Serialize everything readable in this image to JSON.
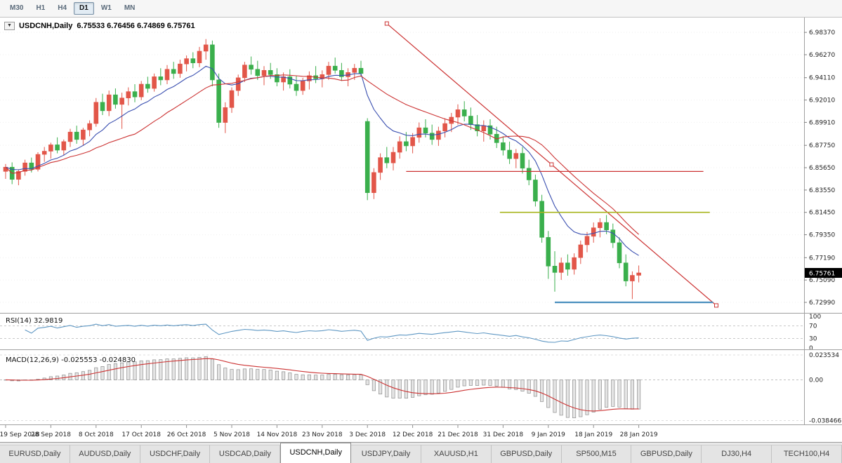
{
  "toolbar": {
    "timeframes": [
      {
        "label": "M30",
        "active": false
      },
      {
        "label": "H1",
        "active": false
      },
      {
        "label": "H4",
        "active": false
      },
      {
        "label": "D1",
        "active": true
      },
      {
        "label": "W1",
        "active": false
      },
      {
        "label": "MN",
        "active": false
      }
    ]
  },
  "chart": {
    "header": {
      "dropdown_icon": "▼",
      "title": "USDCNH,Daily",
      "ohlc": "6.75533 6.76456 6.74869 6.75761"
    },
    "current_price": "6.75761"
  },
  "chart_data": {
    "type": "candlestick",
    "symbol": "USDCNH",
    "timeframe": "Daily",
    "y_range": [
      6.722,
      6.995
    ],
    "price_axis_ticks": [
      "6.98370",
      "6.96270",
      "6.94110",
      "6.92010",
      "6.89910",
      "6.87750",
      "6.85650",
      "6.83550",
      "6.81450",
      "6.79350",
      "6.77190",
      "6.75090",
      "6.72990"
    ],
    "date_ticks": [
      {
        "i": 0,
        "label": "19 Sep 2018"
      },
      {
        "i": 7,
        "label": "28 Sep 2018"
      },
      {
        "i": 14,
        "label": "8 Oct 2018"
      },
      {
        "i": 21,
        "label": "17 Oct 2018"
      },
      {
        "i": 28,
        "label": "26 Oct 2018"
      },
      {
        "i": 35,
        "label": "5 Nov 2018"
      },
      {
        "i": 42,
        "label": "14 Nov 2018"
      },
      {
        "i": 49,
        "label": "23 Nov 2018"
      },
      {
        "i": 56,
        "label": "3 Dec 2018"
      },
      {
        "i": 63,
        "label": "12 Dec 2018"
      },
      {
        "i": 70,
        "label": "21 Dec 2018"
      },
      {
        "i": 77,
        "label": "31 Dec 2018"
      },
      {
        "i": 84,
        "label": "9 Jan 2019"
      },
      {
        "i": 91,
        "label": "18 Jan 2019"
      },
      {
        "i": 98,
        "label": "28 Jan 2019"
      }
    ],
    "candles_ohlc": [
      [
        6.853,
        6.86,
        6.846,
        6.857
      ],
      [
        6.857,
        6.8615,
        6.841,
        6.8455
      ],
      [
        6.8455,
        6.855,
        6.84,
        6.853
      ],
      [
        6.853,
        6.864,
        6.849,
        6.861
      ],
      [
        6.861,
        6.866,
        6.852,
        6.855
      ],
      [
        6.855,
        6.871,
        6.853,
        6.869
      ],
      [
        6.869,
        6.876,
        6.862,
        6.872
      ],
      [
        6.872,
        6.88,
        6.865,
        6.878
      ],
      [
        6.878,
        6.885,
        6.87,
        6.873
      ],
      [
        6.873,
        6.883,
        6.868,
        6.881
      ],
      [
        6.881,
        6.893,
        6.876,
        6.89
      ],
      [
        6.89,
        6.896,
        6.879,
        6.883
      ],
      [
        6.883,
        6.894,
        6.877,
        6.892
      ],
      [
        6.892,
        6.901,
        6.886,
        6.898
      ],
      [
        6.898,
        6.922,
        6.895,
        6.918
      ],
      [
        6.918,
        6.926,
        6.906,
        6.91
      ],
      [
        6.91,
        6.929,
        6.905,
        6.925
      ],
      [
        6.925,
        6.931,
        6.912,
        6.916
      ],
      [
        6.916,
        6.927,
        6.893,
        6.922
      ],
      [
        6.922,
        6.932,
        6.915,
        6.928
      ],
      [
        6.928,
        6.935,
        6.918,
        6.923
      ],
      [
        6.923,
        6.938,
        6.92,
        6.935
      ],
      [
        6.935,
        6.942,
        6.927,
        6.931
      ],
      [
        6.931,
        6.945,
        6.928,
        6.942
      ],
      [
        6.942,
        6.95,
        6.934,
        6.939
      ],
      [
        6.939,
        6.953,
        6.935,
        6.949
      ],
      [
        6.949,
        6.956,
        6.94,
        6.945
      ],
      [
        6.945,
        6.958,
        6.941,
        6.954
      ],
      [
        6.954,
        6.962,
        6.947,
        6.959
      ],
      [
        6.959,
        6.965,
        6.95,
        6.955
      ],
      [
        6.955,
        6.97,
        6.951,
        6.966
      ],
      [
        6.966,
        6.9774,
        6.958,
        6.972
      ],
      [
        6.972,
        6.976,
        6.933,
        6.939
      ],
      [
        6.939,
        6.945,
        6.894,
        6.899
      ],
      [
        6.899,
        6.918,
        6.889,
        6.913
      ],
      [
        6.913,
        6.932,
        6.908,
        6.929
      ],
      [
        6.929,
        6.944,
        6.924,
        6.941
      ],
      [
        6.941,
        6.956,
        6.937,
        6.953
      ],
      [
        6.953,
        6.961,
        6.944,
        6.949
      ],
      [
        6.949,
        6.957,
        6.939,
        6.943
      ],
      [
        6.943,
        6.952,
        6.934,
        6.948
      ],
      [
        6.948,
        6.955,
        6.94,
        6.944
      ],
      [
        6.944,
        6.95,
        6.933,
        6.937
      ],
      [
        6.937,
        6.946,
        6.929,
        6.942
      ],
      [
        6.942,
        6.949,
        6.931,
        6.935
      ],
      [
        6.935,
        6.943,
        6.924,
        6.929
      ],
      [
        6.929,
        6.941,
        6.925,
        6.938
      ],
      [
        6.938,
        6.947,
        6.93,
        6.943
      ],
      [
        6.943,
        6.952,
        6.936,
        6.94
      ],
      [
        6.94,
        6.948,
        6.932,
        6.944
      ],
      [
        6.944,
        6.956,
        6.939,
        6.952
      ],
      [
        6.952,
        6.96,
        6.945,
        6.948
      ],
      [
        6.948,
        6.955,
        6.938,
        6.942
      ],
      [
        6.942,
        6.95,
        6.933,
        6.946
      ],
      [
        6.946,
        6.954,
        6.939,
        6.95
      ],
      [
        6.95,
        6.957,
        6.942,
        6.945
      ],
      [
        6.9,
        6.903,
        6.826,
        6.833
      ],
      [
        6.833,
        6.856,
        6.827,
        6.852
      ],
      [
        6.852,
        6.87,
        6.845,
        6.866
      ],
      [
        6.866,
        6.876,
        6.856,
        6.861
      ],
      [
        6.861,
        6.876,
        6.854,
        6.871
      ],
      [
        6.871,
        6.886,
        6.865,
        6.881
      ],
      [
        6.881,
        6.89,
        6.872,
        6.877
      ],
      [
        6.877,
        6.889,
        6.87,
        6.885
      ],
      [
        6.885,
        6.899,
        6.88,
        6.894
      ],
      [
        6.894,
        6.902,
        6.885,
        6.889
      ],
      [
        6.889,
        6.897,
        6.878,
        6.883
      ],
      [
        6.883,
        6.895,
        6.877,
        6.891
      ],
      [
        6.891,
        6.903,
        6.885,
        6.898
      ],
      [
        6.898,
        6.908,
        6.89,
        6.904
      ],
      [
        6.904,
        6.916,
        6.897,
        6.911
      ],
      [
        6.911,
        6.919,
        6.9,
        6.905
      ],
      [
        6.905,
        6.913,
        6.892,
        6.897
      ],
      [
        6.897,
        6.906,
        6.886,
        6.891
      ],
      [
        6.891,
        6.901,
        6.881,
        6.896
      ],
      [
        6.896,
        6.902,
        6.883,
        6.888
      ],
      [
        6.888,
        6.895,
        6.875,
        6.88
      ],
      [
        6.88,
        6.886,
        6.868,
        6.873
      ],
      [
        6.873,
        6.881,
        6.86,
        6.865
      ],
      [
        6.865,
        6.874,
        6.856,
        6.87
      ],
      [
        6.87,
        6.876,
        6.851,
        6.856
      ],
      [
        6.856,
        6.864,
        6.84,
        6.845
      ],
      [
        6.845,
        6.85,
        6.82,
        6.825
      ],
      [
        6.825,
        6.831,
        6.786,
        6.791
      ],
      [
        6.791,
        6.797,
        6.752,
        6.764
      ],
      [
        6.764,
        6.778,
        6.74,
        6.758
      ],
      [
        6.758,
        6.772,
        6.751,
        6.767
      ],
      [
        6.767,
        6.775,
        6.755,
        6.761
      ],
      [
        6.761,
        6.776,
        6.756,
        6.772
      ],
      [
        6.772,
        6.788,
        6.766,
        6.784
      ],
      [
        6.784,
        6.796,
        6.777,
        6.792
      ],
      [
        6.792,
        6.805,
        6.786,
        6.8
      ],
      [
        6.8,
        6.809,
        6.791,
        6.805
      ],
      [
        6.805,
        6.812,
        6.794,
        6.798
      ],
      [
        6.798,
        6.804,
        6.781,
        6.786
      ],
      [
        6.786,
        6.791,
        6.762,
        6.767
      ],
      [
        6.767,
        6.775,
        6.745,
        6.75
      ],
      [
        6.75,
        6.759,
        6.733,
        6.7553
      ],
      [
        6.75533,
        6.76456,
        6.74869,
        6.75761
      ]
    ],
    "overlays": [
      {
        "name": "ma-fast",
        "type": "EMA",
        "period": 10,
        "color": "#3a4fb0"
      },
      {
        "name": "ma-slow",
        "type": "SMA",
        "period": 21,
        "color": "#cc3333"
      }
    ],
    "drawings": {
      "trendline": {
        "i1": 59,
        "p1": 6.992,
        "i2": 110,
        "p2": 6.727,
        "color": "#cc3333"
      },
      "hlines": [
        {
          "price": 6.853,
          "i1": 62,
          "i2": 108,
          "color": "#cc3333",
          "width": 1.3
        },
        {
          "price": 6.8145,
          "i1": 76.5,
          "i2": 109,
          "color": "#a8b41e",
          "width": 1.6
        },
        {
          "price": 6.7299,
          "i1": 85,
          "i2": 109.5,
          "color": "#4a8fbe",
          "width": 2.2
        }
      ]
    }
  },
  "rsi": {
    "label_text": "RSI(14) 32.9819",
    "period": 14,
    "value": "32.9819",
    "levels": [
      "100",
      "70",
      "30",
      "0"
    ],
    "color": "#5e97c3"
  },
  "macd": {
    "label_text": "MACD(12,26,9) -0.025553 -0.024830",
    "fast": 12,
    "slow": 26,
    "signal": 9,
    "values": "-0.025553 -0.024830",
    "axis_ticks": [
      "0.023534",
      "0.00",
      "-0.038466"
    ],
    "histogram_color": "#e4e4e4",
    "histogram_border": "#8f8f8f",
    "signal_color": "#cc3333"
  },
  "colors": {
    "bull": "#e25649",
    "bear": "#3aaf4c",
    "axis_text": "#222222",
    "panel_divider": "#a0a0a0",
    "badge_bg": "#000000",
    "badge_text": "#ffffff"
  },
  "tabs": [
    {
      "label": "EURUSD,Daily",
      "active": false
    },
    {
      "label": "AUDUSD,Daily",
      "active": false
    },
    {
      "label": "USDCHF,Daily",
      "active": false
    },
    {
      "label": "USDCAD,Daily",
      "active": false
    },
    {
      "label": "USDCNH,Daily",
      "active": true
    },
    {
      "label": "USDJPY,Daily",
      "active": false
    },
    {
      "label": "XAUUSD,H1",
      "active": false
    },
    {
      "label": "GBPUSD,Daily",
      "active": false
    },
    {
      "label": "SP500,M15",
      "active": false
    },
    {
      "label": "GBPUSD,Daily",
      "active": false
    },
    {
      "label": "DJ30,H4",
      "active": false
    },
    {
      "label": "TECH100,H4",
      "active": false
    }
  ]
}
